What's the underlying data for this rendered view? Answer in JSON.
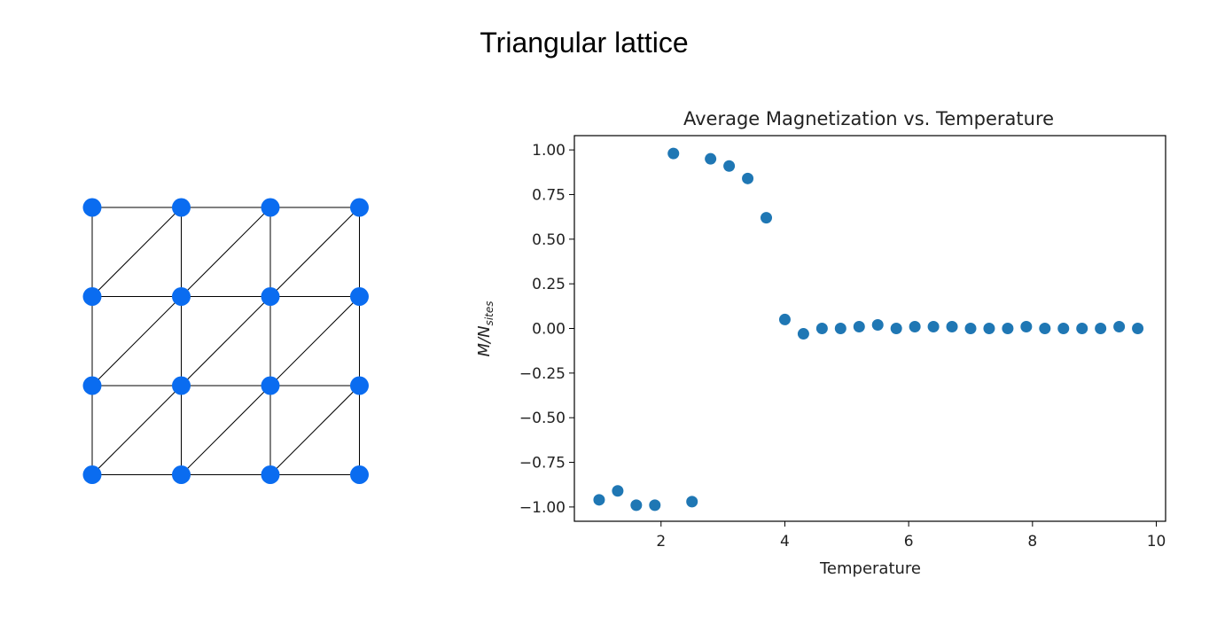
{
  "figure": {
    "title": "Triangular lattice"
  },
  "lattice": {
    "rows": 4,
    "cols": 4,
    "node_color": "#0a6cf0",
    "edge_color": "#000000",
    "edges_note": "square grid plus one diagonal per cell"
  },
  "chart_data": {
    "type": "scatter",
    "title": "Average Magnetization vs. Temperature",
    "xlabel": "Temperature",
    "ylabel": "M/N_sites",
    "ylabel_main": "M/N",
    "ylabel_sub": "sites",
    "xlim": [
      0.6,
      10.15
    ],
    "ylim": [
      -1.08,
      1.08
    ],
    "xticks": [
      2,
      4,
      6,
      8,
      10
    ],
    "xtick_labels": [
      "2",
      "4",
      "6",
      "8",
      "10"
    ],
    "yticks": [
      1.0,
      0.75,
      0.5,
      0.25,
      0.0,
      -0.25,
      -0.5,
      -0.75,
      -1.0
    ],
    "ytick_labels": [
      "1.00",
      "0.75",
      "0.50",
      "0.25",
      "0.00",
      "−0.25",
      "−0.50",
      "−0.75",
      "−1.00"
    ],
    "grid": false,
    "marker_color": "#1f77b4",
    "series": [
      {
        "x": [
          1.0,
          1.3,
          1.6,
          1.9,
          2.2,
          2.5,
          2.8,
          3.1,
          3.4,
          3.7,
          4.0,
          4.3,
          4.6,
          4.9,
          5.2,
          5.5,
          5.8,
          6.1,
          6.4,
          6.7,
          7.0,
          7.3,
          7.6,
          7.9,
          8.2,
          8.5,
          8.8,
          9.1,
          9.4,
          9.7
        ],
        "y": [
          -0.96,
          -0.91,
          -0.99,
          -0.99,
          0.98,
          -0.97,
          0.95,
          0.91,
          0.84,
          0.62,
          0.05,
          -0.03,
          0.0,
          0.0,
          0.01,
          0.02,
          0.0,
          0.01,
          0.01,
          0.01,
          0.0,
          0.0,
          0.0,
          0.01,
          0.0,
          0.0,
          0.0,
          0.0,
          0.01,
          0.0
        ]
      }
    ]
  }
}
